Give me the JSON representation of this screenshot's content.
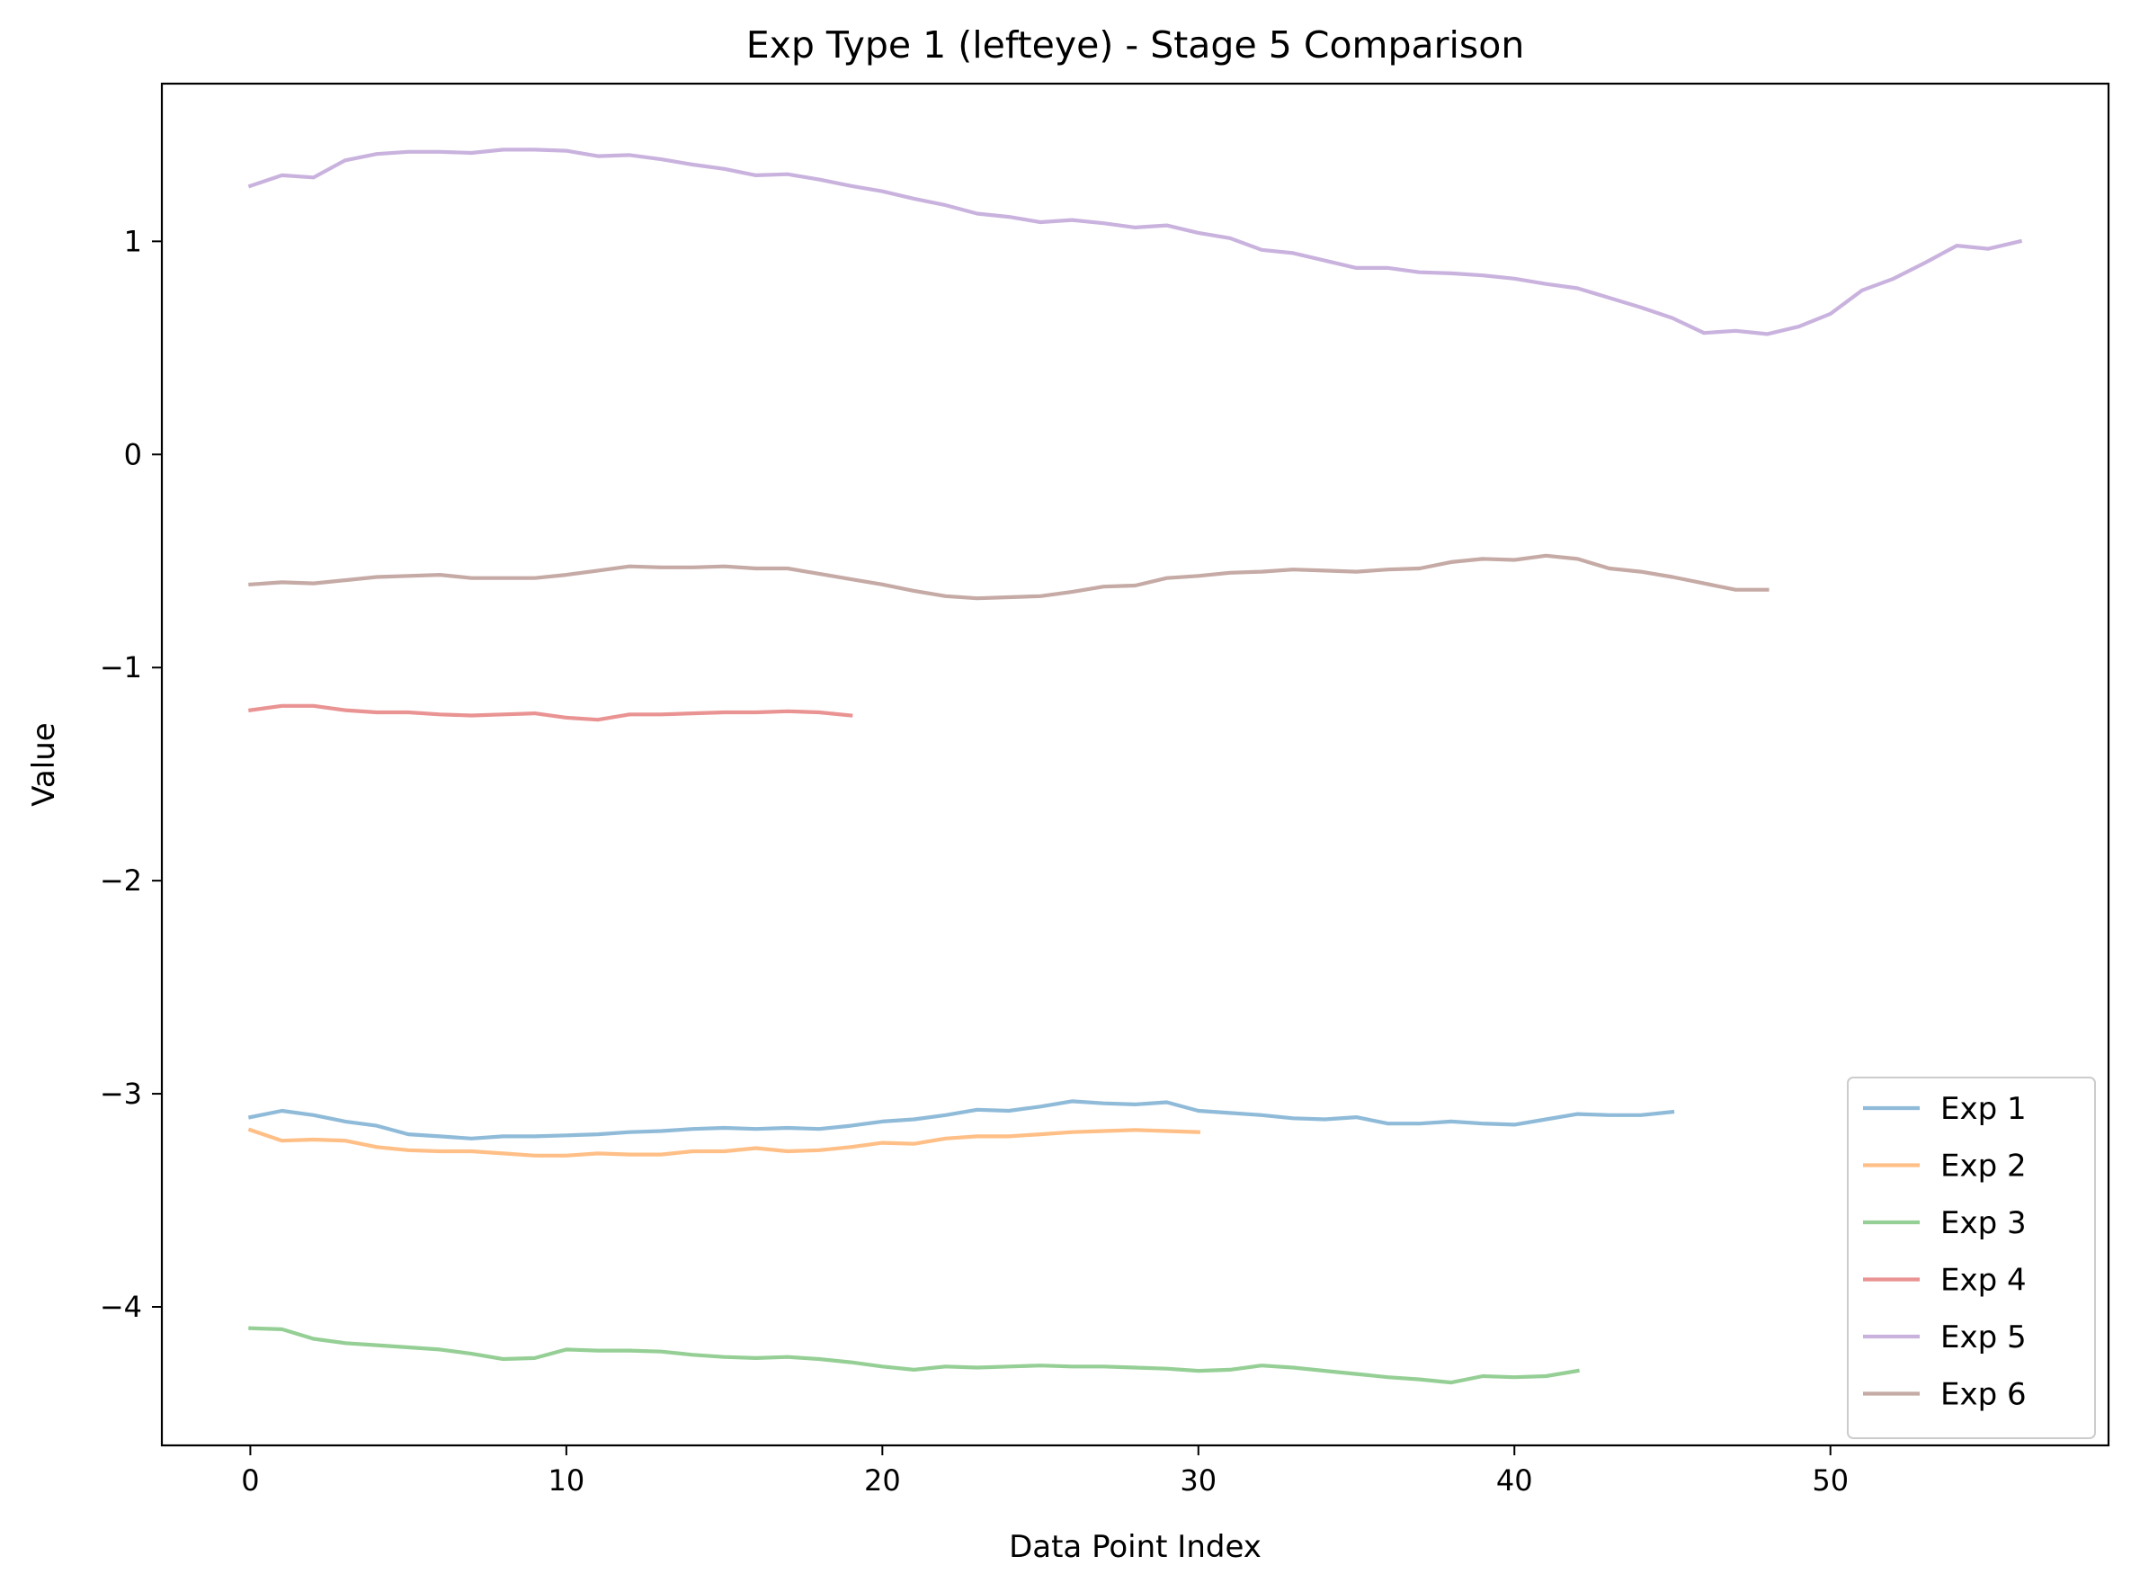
{
  "chart_data": {
    "type": "line",
    "title": "Exp Type 1 (lefteye) - Stage 5 Comparison",
    "xlabel": "Data Point Index",
    "ylabel": "Value",
    "xlim": [
      -2.8,
      58.8
    ],
    "ylim": [
      -4.65,
      1.74
    ],
    "xticks": [
      0,
      10,
      20,
      30,
      40,
      50
    ],
    "yticks": [
      -4,
      -3,
      -2,
      -1,
      0,
      1
    ],
    "ytick_labels": [
      "−4",
      "−3",
      "−2",
      "−1",
      "0",
      "1"
    ],
    "grid": false,
    "legend_position": "lower-right",
    "series": [
      {
        "name": "Exp 1",
        "color": "#1f77b4",
        "values": [
          -3.11,
          -3.08,
          -3.1,
          -3.13,
          -3.15,
          -3.19,
          -3.2,
          -3.21,
          -3.2,
          -3.2,
          -3.195,
          -3.19,
          -3.18,
          -3.175,
          -3.165,
          -3.16,
          -3.165,
          -3.16,
          -3.165,
          -3.15,
          -3.13,
          -3.12,
          -3.1,
          -3.075,
          -3.08,
          -3.06,
          -3.035,
          -3.045,
          -3.05,
          -3.04,
          -3.08,
          -3.09,
          -3.1,
          -3.115,
          -3.12,
          -3.11,
          -3.14,
          -3.14,
          -3.13,
          -3.14,
          -3.145,
          -3.12,
          -3.095,
          -3.1,
          -3.1,
          -3.085
        ]
      },
      {
        "name": "Exp 2",
        "color": "#ff7f0e",
        "values": [
          -3.17,
          -3.22,
          -3.215,
          -3.22,
          -3.25,
          -3.265,
          -3.27,
          -3.27,
          -3.28,
          -3.29,
          -3.29,
          -3.28,
          -3.285,
          -3.285,
          -3.27,
          -3.27,
          -3.255,
          -3.27,
          -3.265,
          -3.25,
          -3.23,
          -3.235,
          -3.21,
          -3.2,
          -3.2,
          -3.19,
          -3.18,
          -3.175,
          -3.17,
          -3.175,
          -3.18
        ]
      },
      {
        "name": "Exp 3",
        "color": "#2ca02c",
        "values": [
          -4.1,
          -4.105,
          -4.15,
          -4.17,
          -4.18,
          -4.19,
          -4.2,
          -4.22,
          -4.245,
          -4.24,
          -4.2,
          -4.205,
          -4.205,
          -4.21,
          -4.225,
          -4.235,
          -4.24,
          -4.235,
          -4.245,
          -4.26,
          -4.28,
          -4.295,
          -4.28,
          -4.285,
          -4.28,
          -4.275,
          -4.28,
          -4.28,
          -4.285,
          -4.29,
          -4.3,
          -4.295,
          -4.275,
          -4.285,
          -4.3,
          -4.315,
          -4.33,
          -4.34,
          -4.355,
          -4.325,
          -4.33,
          -4.325,
          -4.3
        ]
      },
      {
        "name": "Exp 4",
        "color": "#d62728",
        "values": [
          -1.2,
          -1.18,
          -1.18,
          -1.2,
          -1.21,
          -1.21,
          -1.22,
          -1.225,
          -1.22,
          -1.215,
          -1.235,
          -1.245,
          -1.22,
          -1.22,
          -1.215,
          -1.21,
          -1.21,
          -1.205,
          -1.21,
          -1.225
        ]
      },
      {
        "name": "Exp 5",
        "color": "#9467bd",
        "values": [
          1.26,
          1.31,
          1.3,
          1.38,
          1.41,
          1.42,
          1.42,
          1.415,
          1.43,
          1.43,
          1.425,
          1.4,
          1.405,
          1.385,
          1.36,
          1.34,
          1.31,
          1.315,
          1.29,
          1.26,
          1.235,
          1.2,
          1.17,
          1.13,
          1.115,
          1.09,
          1.1,
          1.085,
          1.065,
          1.075,
          1.04,
          1.015,
          0.96,
          0.945,
          0.91,
          0.875,
          0.875,
          0.855,
          0.85,
          0.84,
          0.825,
          0.8,
          0.78,
          0.735,
          0.69,
          0.64,
          0.57,
          0.58,
          0.565,
          0.6,
          0.66,
          0.77,
          0.825,
          0.9,
          0.98,
          0.965,
          1.0
        ]
      },
      {
        "name": "Exp 6",
        "color": "#8c564b",
        "values": [
          -0.61,
          -0.6,
          -0.605,
          -0.59,
          -0.575,
          -0.57,
          -0.565,
          -0.58,
          -0.58,
          -0.58,
          -0.565,
          -0.545,
          -0.525,
          -0.53,
          -0.53,
          -0.525,
          -0.535,
          -0.535,
          -0.56,
          -0.585,
          -0.61,
          -0.64,
          -0.665,
          -0.675,
          -0.67,
          -0.665,
          -0.645,
          -0.62,
          -0.615,
          -0.58,
          -0.57,
          -0.555,
          -0.55,
          -0.54,
          -0.545,
          -0.55,
          -0.54,
          -0.535,
          -0.505,
          -0.49,
          -0.495,
          -0.475,
          -0.49,
          -0.535,
          -0.55,
          -0.575,
          -0.605,
          -0.635,
          -0.635
        ]
      }
    ]
  }
}
